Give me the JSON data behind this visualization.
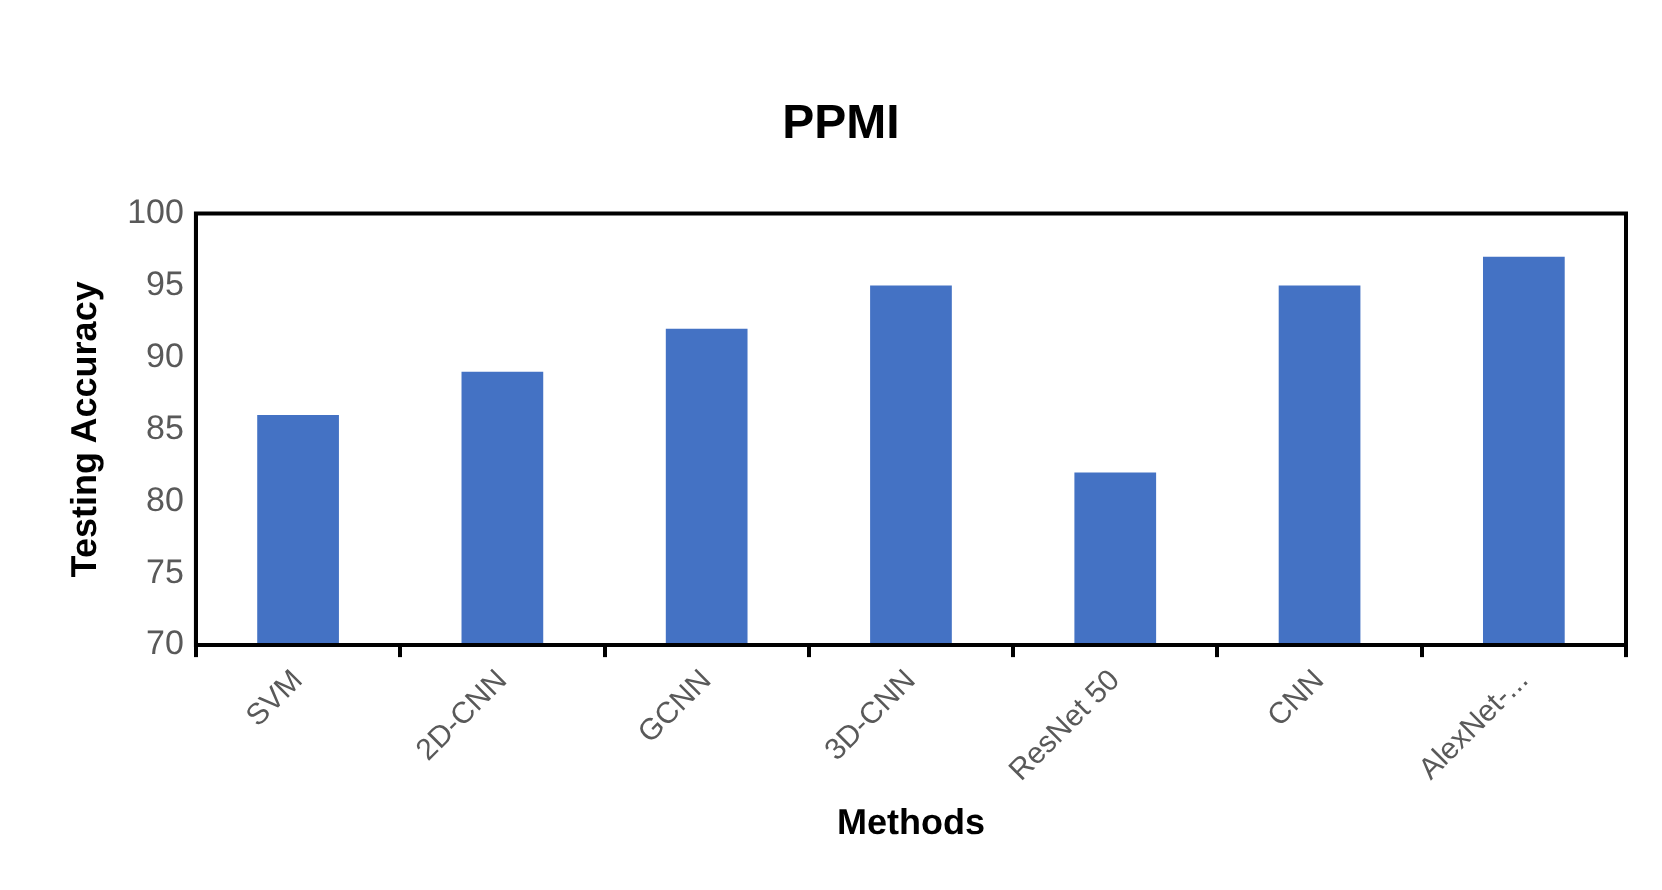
{
  "chart_data": {
    "type": "bar",
    "title": "PPMI",
    "xlabel": "Methods",
    "ylabel": "Testing Accuracy",
    "categories": [
      "SVM",
      "2D-CNN",
      "GCNN",
      "3D-CNN",
      "ResNet 50",
      "CNN",
      "AlexNet-..."
    ],
    "values": [
      86,
      89,
      92,
      95,
      82,
      95,
      97
    ],
    "color": "#4472c4",
    "ylim": [
      70,
      100
    ],
    "yticks": [
      70,
      75,
      80,
      85,
      90,
      95,
      100
    ],
    "grid": false,
    "legend": false
  }
}
